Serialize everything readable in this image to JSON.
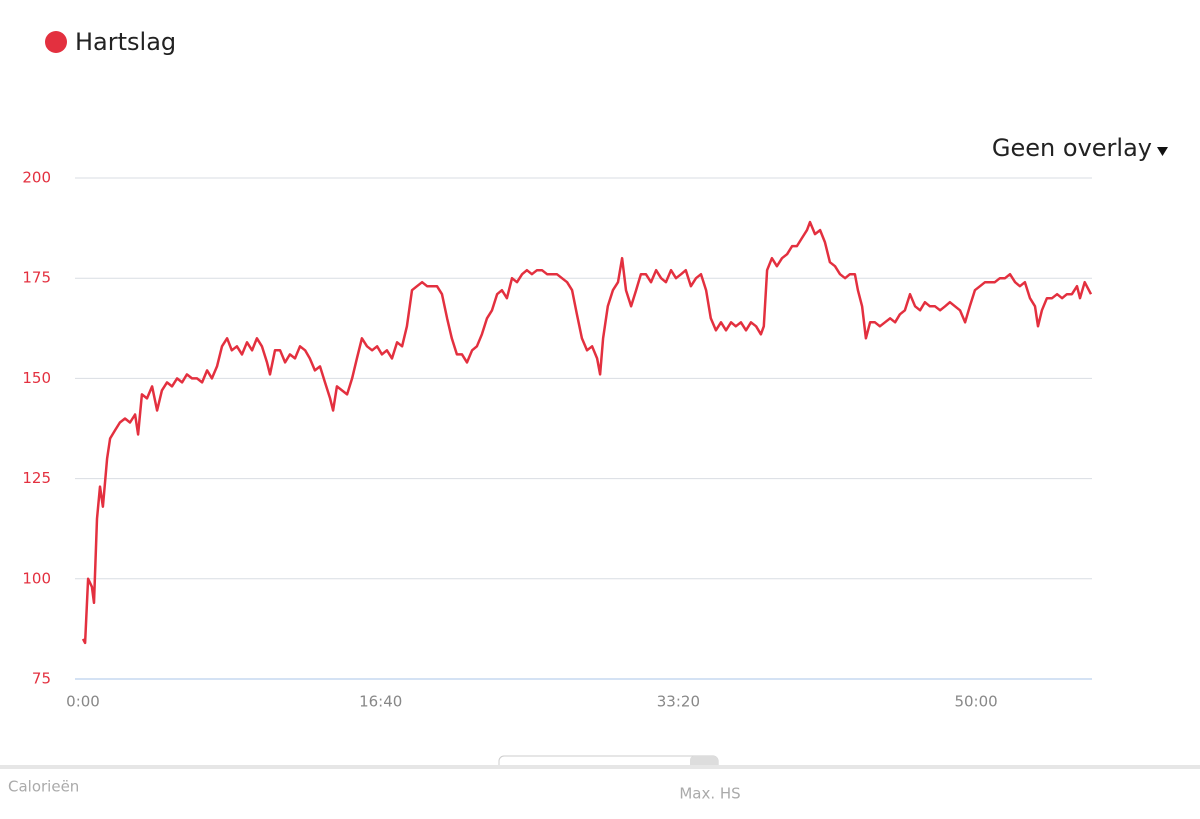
{
  "chart_data": {
    "type": "line",
    "x": [
      0,
      7,
      17,
      30,
      37,
      47,
      57,
      67,
      81,
      91,
      107,
      124,
      141,
      158,
      175,
      185,
      198,
      215,
      232,
      249,
      265,
      282,
      299,
      316,
      333,
      349,
      366,
      383,
      400,
      417,
      433,
      450,
      467,
      484,
      500,
      517,
      534,
      551,
      568,
      584,
      601,
      618,
      628,
      645,
      662,
      679,
      695,
      712,
      729,
      746,
      762,
      779,
      796,
      813,
      830,
      840,
      853,
      870,
      887,
      904,
      920,
      937,
      954,
      971,
      988,
      1004,
      1021,
      1038,
      1055,
      1072,
      1088,
      1105,
      1122,
      1139,
      1156,
      1172,
      1189,
      1206,
      1223,
      1239,
      1256,
      1273,
      1290,
      1307,
      1323,
      1340,
      1357,
      1374,
      1391,
      1407,
      1424,
      1441,
      1458,
      1475,
      1491,
      1508,
      1525,
      1542,
      1559,
      1575,
      1592,
      1609,
      1626,
      1643,
      1659,
      1676,
      1693,
      1710,
      1727,
      1737,
      1747,
      1763,
      1780,
      1797,
      1811,
      1824,
      1841,
      1858,
      1874,
      1891,
      1908,
      1925,
      1942,
      1958,
      1975,
      1992,
      2009,
      2025,
      2042,
      2059,
      2076,
      2093,
      2109,
      2126,
      2143,
      2160,
      2177,
      2193,
      2210,
      2227,
      2244,
      2261,
      2277,
      2287,
      2298,
      2314,
      2331,
      2348,
      2365,
      2382,
      2398,
      2415,
      2432,
      2442,
      2459,
      2476,
      2492,
      2509,
      2526,
      2543,
      2560,
      2576,
      2593,
      2603,
      2617,
      2630,
      2644,
      2660,
      2677,
      2694,
      2711,
      2728,
      2744,
      2761,
      2778,
      2795,
      2812,
      2828,
      2845,
      2862,
      2879,
      2896,
      2912,
      2929,
      2946,
      2963,
      2979,
      2996,
      3013,
      3030,
      3047,
      3063,
      3080,
      3097,
      3114,
      3131,
      3147,
      3164,
      3181,
      3198,
      3208,
      3221,
      3238,
      3255,
      3272,
      3289,
      3305,
      3322,
      3339,
      3349,
      3365,
      3386
    ],
    "series": [
      {
        "name": "Hartslag",
        "color": "#e3303f",
        "values": [
          85,
          84,
          100,
          98,
          94,
          115,
          123,
          118,
          130,
          135,
          137,
          139,
          140,
          139,
          141,
          136,
          146,
          145,
          148,
          142,
          147,
          149,
          148,
          150,
          149,
          151,
          150,
          150,
          149,
          152,
          150,
          153,
          158,
          160,
          157,
          158,
          156,
          159,
          157,
          160,
          158,
          154,
          151,
          157,
          157,
          154,
          156,
          155,
          158,
          157,
          155,
          152,
          153,
          149,
          145,
          142,
          148,
          147,
          146,
          150,
          155,
          160,
          158,
          157,
          158,
          156,
          157,
          155,
          159,
          158,
          163,
          172,
          173,
          174,
          173,
          173,
          173,
          171,
          165,
          160,
          156,
          156,
          154,
          157,
          158,
          161,
          165,
          167,
          171,
          172,
          170,
          175,
          174,
          176,
          177,
          176,
          177,
          177,
          176,
          176,
          176,
          175,
          174,
          172,
          166,
          160,
          157,
          158,
          155,
          151,
          160,
          168,
          172,
          174,
          180,
          172,
          168,
          172,
          176,
          176,
          174,
          177,
          175,
          174,
          177,
          175,
          176,
          177,
          173,
          175,
          176,
          172,
          165,
          162,
          164,
          162,
          164,
          163,
          164,
          162,
          164,
          163,
          161,
          163,
          177,
          180,
          178,
          180,
          181,
          183,
          183,
          185,
          187,
          189,
          186,
          187,
          184,
          179,
          178,
          176,
          175,
          176,
          176,
          172,
          168,
          160,
          164,
          164,
          163,
          164,
          165,
          164,
          166,
          167,
          171,
          168,
          167,
          169,
          168,
          168,
          167,
          168,
          169,
          168,
          167,
          164,
          168,
          172,
          173,
          174,
          174,
          174,
          175,
          175,
          176,
          174,
          173,
          174,
          170,
          168,
          163,
          167,
          170,
          170,
          171,
          170,
          171,
          171,
          173,
          170,
          174,
          171
        ]
      }
    ],
    "xlim": [
      0,
      3386
    ],
    "xticks": [
      {
        "value": 0,
        "label": "0:00"
      },
      {
        "value": 1000,
        "label": "16:40"
      },
      {
        "value": 2000,
        "label": "33:20"
      },
      {
        "value": 3000,
        "label": "50:00"
      }
    ],
    "ylim": [
      75,
      200
    ],
    "yticks": [
      75,
      100,
      125,
      150,
      175,
      200
    ],
    "grid": true
  },
  "ui": {
    "overlay_dropdown": "Geen overlay",
    "bottom_labels": [
      "Calorieën",
      "Max. HS"
    ]
  }
}
